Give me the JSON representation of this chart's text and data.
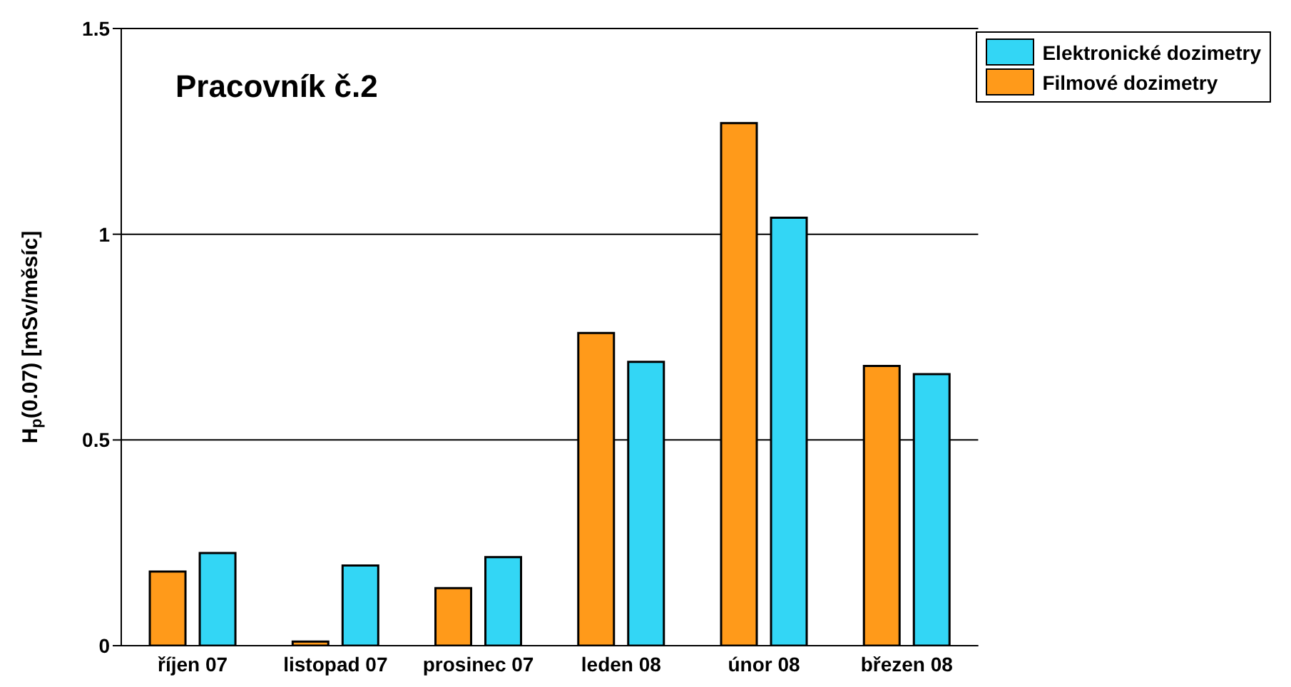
{
  "chart_data": {
    "type": "bar",
    "title": "Pracovník č.2",
    "ylabel": "H$_{p}$(0.07)  [mSv/měsíc]",
    "categories": [
      "říjen 07",
      "listopad 07",
      "prosinec 07",
      "leden 08",
      "únor 08",
      "březen 08"
    ],
    "series": [
      {
        "name": "Filmové dozimetry",
        "color": "#ff9a1a",
        "values": [
          0.18,
          0.01,
          0.14,
          0.76,
          1.27,
          0.68
        ]
      },
      {
        "name": "Elektronické dozimetry",
        "color": "#33d6f5",
        "values": [
          0.225,
          0.195,
          0.215,
          0.69,
          1.04,
          0.66
        ]
      }
    ],
    "ylim": [
      0,
      1.5
    ],
    "yticks": [
      0,
      0.5,
      1,
      1.5
    ],
    "grid": "y",
    "legend": "top right"
  }
}
